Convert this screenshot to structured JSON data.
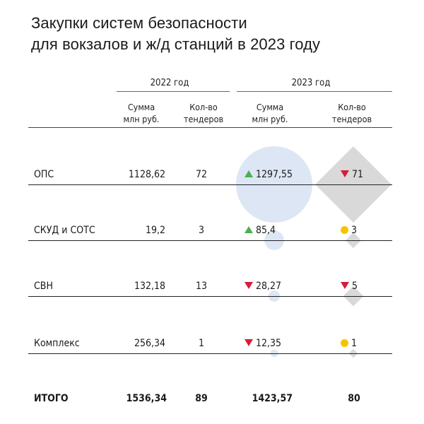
{
  "title_line1": "Закупки систем безопасности",
  "title_line2": "для вокзалов и ж/д станций в 2023 году",
  "year_2022": "2022 год",
  "year_2023": "2023 год",
  "col_sum": "Сумма\nмлн руб.",
  "col_count": "Кол-во\nтендеров",
  "colors": {
    "sum_bubble": "#dde6f4",
    "count_diamond": "#d9d9d9",
    "up": "#4caf50",
    "down": "#d81b3a",
    "flat": "#f5c400"
  },
  "chart_data": {
    "type": "table",
    "title": "Закупки систем безопасности для вокзалов и ж/д станций в 2023 году",
    "columns": [
      "2022 год Сумма млн руб.",
      "2022 год Кол-во тендеров",
      "2023 год Сумма млн руб.",
      "2023 год Кол-во тендеров"
    ],
    "rows": [
      {
        "label": "ОПС",
        "sum2022": "1128,62",
        "count2022": "72",
        "sum2023": "1297,55",
        "sum_trend": "up",
        "count2023": "71",
        "count_trend": "down",
        "sum2023_value": 1297.55,
        "count2023_value": 71
      },
      {
        "label": "СКУД и СОТС",
        "sum2022": "19,2",
        "count2022": "3",
        "sum2023": "85,4",
        "sum_trend": "up",
        "count2023": "3",
        "count_trend": "flat",
        "sum2023_value": 85.4,
        "count2023_value": 3
      },
      {
        "label": "СВН",
        "sum2022": "132,18",
        "count2022": "13",
        "sum2023": "28,27",
        "sum_trend": "down",
        "count2023": "5",
        "count_trend": "down",
        "sum2023_value": 28.27,
        "count2023_value": 5
      },
      {
        "label": "Комплекс",
        "sum2022": "256,34",
        "count2022": "1",
        "sum2023": "12,35",
        "sum_trend": "down",
        "count2023": "1",
        "count_trend": "flat",
        "sum2023_value": 12.35,
        "count2023_value": 1
      }
    ],
    "total": {
      "label": "ИТОГО",
      "sum2022": "1536,34",
      "count2022": "89",
      "sum2023": "1423,57",
      "count2023": "80"
    }
  }
}
